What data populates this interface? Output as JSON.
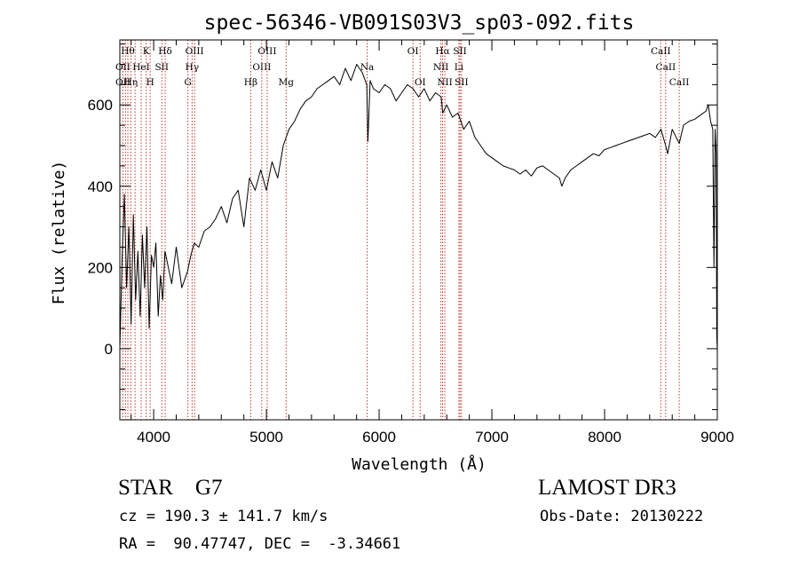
{
  "chart_data": {
    "type": "line",
    "title": "spec-56346-VB091S03V3_sp03-092.fits",
    "xlabel": "Wavelength (Å)",
    "ylabel": "Flux (relative)",
    "xlim": [
      3700,
      9000
    ],
    "ylim": [
      -175,
      760
    ],
    "xticks": [
      4000,
      5000,
      6000,
      7000,
      8000,
      9000
    ],
    "yticks": [
      0,
      200,
      400,
      600
    ],
    "grid": false,
    "series": [
      {
        "name": "flux",
        "x": [
          3700,
          3720,
          3740,
          3760,
          3780,
          3800,
          3820,
          3840,
          3860,
          3880,
          3900,
          3920,
          3940,
          3960,
          3980,
          4000,
          4020,
          4040,
          4060,
          4080,
          4100,
          4130,
          4160,
          4200,
          4250,
          4300,
          4330,
          4360,
          4400,
          4450,
          4500,
          4550,
          4600,
          4650,
          4700,
          4750,
          4800,
          4850,
          4900,
          4950,
          5000,
          5050,
          5100,
          5150,
          5200,
          5250,
          5300,
          5350,
          5400,
          5450,
          5500,
          5550,
          5600,
          5650,
          5700,
          5750,
          5800,
          5850,
          5890,
          5900,
          5920,
          5950,
          6000,
          6050,
          6100,
          6150,
          6200,
          6250,
          6300,
          6350,
          6400,
          6450,
          6500,
          6550,
          6564,
          6600,
          6650,
          6700,
          6750,
          6800,
          6850,
          6900,
          6950,
          7000,
          7050,
          7100,
          7150,
          7200,
          7250,
          7300,
          7350,
          7400,
          7450,
          7500,
          7550,
          7600,
          7620,
          7650,
          7700,
          7750,
          7800,
          7850,
          7900,
          7950,
          8000,
          8050,
          8100,
          8150,
          8200,
          8250,
          8300,
          8350,
          8400,
          8450,
          8500,
          8542,
          8560,
          8600,
          8662,
          8700,
          8750,
          8800,
          8850,
          8900,
          8920,
          8940,
          8960,
          8970,
          8980,
          8990,
          8995,
          9000
        ],
        "values": [
          0,
          220,
          380,
          150,
          300,
          60,
          330,
          120,
          240,
          80,
          280,
          150,
          300,
          50,
          230,
          200,
          260,
          80,
          180,
          120,
          240,
          200,
          160,
          250,
          150,
          190,
          230,
          260,
          250,
          290,
          300,
          320,
          350,
          310,
          370,
          390,
          300,
          420,
          390,
          440,
          390,
          460,
          420,
          500,
          540,
          560,
          590,
          610,
          620,
          640,
          650,
          660,
          670,
          650,
          690,
          660,
          700,
          680,
          650,
          510,
          660,
          640,
          630,
          650,
          640,
          610,
          630,
          650,
          640,
          620,
          640,
          610,
          630,
          620,
          580,
          600,
          570,
          580,
          540,
          560,
          520,
          500,
          480,
          470,
          460,
          450,
          445,
          440,
          430,
          440,
          425,
          445,
          450,
          440,
          430,
          420,
          400,
          420,
          440,
          450,
          460,
          470,
          480,
          475,
          490,
          495,
          500,
          505,
          510,
          515,
          520,
          525,
          530,
          520,
          540,
          500,
          480,
          540,
          505,
          550,
          560,
          565,
          575,
          585,
          600,
          560,
          540,
          200,
          540,
          480,
          30,
          -5
        ]
      }
    ],
    "lines": [
      {
        "wave": 3727,
        "label": "OII"
      },
      {
        "wave": 3750,
        "label": "OII"
      },
      {
        "wave": 3771,
        "label": "Hθ"
      },
      {
        "wave": 3798,
        "label": "Hη"
      },
      {
        "wave": 3835,
        "label": "Hη"
      },
      {
        "wave": 3889,
        "label": "HeI"
      },
      {
        "wave": 3934,
        "label": "K"
      },
      {
        "wave": 3969,
        "label": "H"
      },
      {
        "wave": 4072,
        "label": "SII"
      },
      {
        "wave": 4102,
        "label": "Hδ"
      },
      {
        "wave": 4304,
        "label": "G"
      },
      {
        "wave": 4341,
        "label": "Hγ"
      },
      {
        "wave": 4363,
        "label": "OIII"
      },
      {
        "wave": 4861,
        "label": "Hβ"
      },
      {
        "wave": 4959,
        "label": "OIII"
      },
      {
        "wave": 5007,
        "label": "OIII"
      },
      {
        "wave": 5175,
        "label": "Mg"
      },
      {
        "wave": 5894,
        "label": "Na"
      },
      {
        "wave": 6300,
        "label": "OI"
      },
      {
        "wave": 6364,
        "label": "OI"
      },
      {
        "wave": 6548,
        "label": "NII"
      },
      {
        "wave": 6563,
        "label": "Hα"
      },
      {
        "wave": 6583,
        "label": "NII"
      },
      {
        "wave": 6708,
        "label": "Li"
      },
      {
        "wave": 6717,
        "label": "SII"
      },
      {
        "wave": 6731,
        "label": "SII"
      },
      {
        "wave": 8498,
        "label": "CaII"
      },
      {
        "wave": 8542,
        "label": "CaII"
      },
      {
        "wave": 8662,
        "label": "CaII"
      }
    ],
    "line_labels": [
      {
        "text": "Hθ",
        "wave": 3771,
        "row": 0
      },
      {
        "text": "K",
        "wave": 3934,
        "row": 0
      },
      {
        "text": "Hδ",
        "wave": 4102,
        "row": 0
      },
      {
        "text": "OIII",
        "wave": 4363,
        "row": 0
      },
      {
        "text": "OIII",
        "wave": 5007,
        "row": 0
      },
      {
        "text": "OI",
        "wave": 6300,
        "row": 0
      },
      {
        "text": "Hα",
        "wave": 6563,
        "row": 0
      },
      {
        "text": "SII",
        "wave": 6717,
        "row": 0
      },
      {
        "text": "CaII",
        "wave": 8498,
        "row": 0
      },
      {
        "text": "OII",
        "wave": 3727,
        "row": 1
      },
      {
        "text": "HeI",
        "wave": 3889,
        "row": 1
      },
      {
        "text": "SII",
        "wave": 4072,
        "row": 1
      },
      {
        "text": "Hγ",
        "wave": 4341,
        "row": 1
      },
      {
        "text": "OIII",
        "wave": 4959,
        "row": 1
      },
      {
        "text": "Na",
        "wave": 5894,
        "row": 1
      },
      {
        "text": "NII",
        "wave": 6548,
        "row": 1
      },
      {
        "text": "Li",
        "wave": 6708,
        "row": 1
      },
      {
        "text": "CaII",
        "wave": 8542,
        "row": 1
      },
      {
        "text": "OII",
        "wave": 3727,
        "row": 2
      },
      {
        "text": "Hη",
        "wave": 3798,
        "row": 2
      },
      {
        "text": "H",
        "wave": 3969,
        "row": 2
      },
      {
        "text": "G",
        "wave": 4304,
        "row": 2
      },
      {
        "text": "Hβ",
        "wave": 4861,
        "row": 2
      },
      {
        "text": "Mg",
        "wave": 5175,
        "row": 2
      },
      {
        "text": "OI",
        "wave": 6364,
        "row": 2
      },
      {
        "text": "NII",
        "wave": 6583,
        "row": 2
      },
      {
        "text": "SII",
        "wave": 6731,
        "row": 2
      },
      {
        "text": "CaII",
        "wave": 8662,
        "row": 2
      }
    ]
  },
  "info": {
    "classification": "STAR    G7",
    "cz": "cz = 190.3 ± 141.7 km/s",
    "coords": "RA =  90.47747, DEC =  -3.34661",
    "survey": "LAMOST DR3",
    "obs_date": "Obs-Date: 20130222"
  },
  "colors": {
    "spectrum": "#000000",
    "line_marker": "#c0392b",
    "axes": "#000000",
    "background": "#ffffff"
  }
}
